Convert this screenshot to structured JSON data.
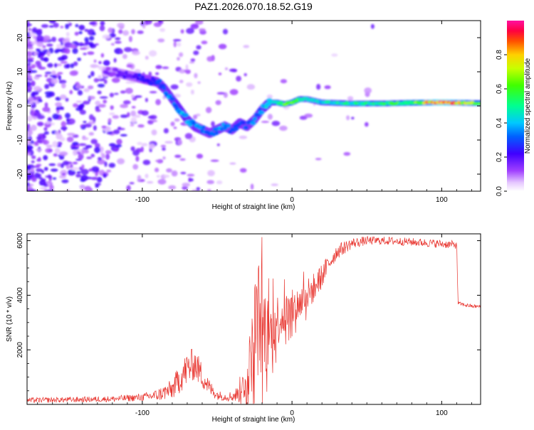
{
  "title": "PAZ1.2026.070.18.52.G19",
  "chart_data": [
    {
      "type": "heatmap",
      "name": "spectrogram",
      "xlabel": "Height of straight line (km)",
      "ylabel": "Frequency (Hz)",
      "xlim": [
        -177,
        126
      ],
      "ylim": [
        -25,
        25
      ],
      "xticks": [
        -100,
        0,
        100
      ],
      "yticks": [
        -20,
        -10,
        0,
        10,
        20
      ],
      "ridge": {
        "x": [
          -120,
          -110,
          -100,
          -90,
          -85,
          -80,
          -75,
          -70,
          -65,
          -60,
          -55,
          -50,
          -45,
          -40,
          -35,
          -30,
          -25,
          -20,
          -15,
          -10,
          -5,
          0,
          5,
          10,
          20,
          40,
          60,
          80,
          100,
          126
        ],
        "y": [
          10,
          9,
          8,
          7,
          5,
          2,
          -1,
          -4,
          -6,
          -7,
          -8,
          -7,
          -6,
          -7,
          -5,
          -6,
          -4,
          -1,
          1,
          1,
          0.5,
          1,
          2,
          2,
          1,
          0.7,
          0.7,
          0.9,
          1,
          0.8
        ],
        "amplitude": [
          0.15,
          0.2,
          0.25,
          0.3,
          0.35,
          0.35,
          0.4,
          0.4,
          0.35,
          0.35,
          0.3,
          0.35,
          0.35,
          0.3,
          0.35,
          0.3,
          0.35,
          0.35,
          0.45,
          0.5,
          0.6,
          0.65,
          0.55,
          0.45,
          0.45,
          0.5,
          0.55,
          0.6,
          0.95,
          0.6
        ]
      },
      "colorbar": {
        "label": "Normalized spectral amplitude",
        "range": [
          0.0,
          1.0
        ],
        "ticks": [
          0.0,
          0.2,
          0.4,
          0.6,
          0.8
        ],
        "tick_labels": [
          "0.0",
          "0.2",
          "0.4",
          "0.6",
          "0.8"
        ]
      }
    },
    {
      "type": "line",
      "name": "snr",
      "xlabel": "Height of straight line (km)",
      "ylabel": "SNR (10 * v/v)",
      "xlim": [
        -177,
        126
      ],
      "ylim": [
        0,
        6250
      ],
      "xticks": [
        -100,
        0,
        100
      ],
      "yticks": [
        2000,
        4000,
        6000
      ],
      "color": "#e8342e",
      "series": [
        {
          "name": "SNR",
          "x": [
            -177,
            -150,
            -120,
            -100,
            -90,
            -80,
            -75,
            -70,
            -65,
            -60,
            -55,
            -50,
            -45,
            -40,
            -35,
            -30,
            -27,
            -25,
            -22,
            -20,
            -18,
            -15,
            -12,
            -10,
            -5,
            0,
            5,
            10,
            15,
            20,
            25,
            30,
            40,
            50,
            60,
            70,
            80,
            90,
            100,
            105,
            110,
            111,
            115,
            120,
            126
          ],
          "y": [
            150,
            170,
            200,
            260,
            340,
            550,
            950,
            1300,
            1500,
            1050,
            600,
            350,
            280,
            300,
            400,
            1000,
            1800,
            2800,
            3200,
            2900,
            2700,
            2500,
            2900,
            3100,
            3300,
            3500,
            3700,
            4000,
            4300,
            4700,
            5200,
            5600,
            5900,
            6000,
            6000,
            5980,
            5950,
            5920,
            5880,
            5860,
            5850,
            3700,
            3650,
            3600,
            3580
          ],
          "amp": [
            100,
            100,
            110,
            140,
            220,
            380,
            550,
            650,
            600,
            480,
            300,
            180,
            150,
            200,
            350,
            800,
            1400,
            1900,
            2200,
            2000,
            1700,
            1200,
            1100,
            1000,
            800,
            700,
            650,
            600,
            550,
            450,
            350,
            280,
            200,
            160,
            150,
            150,
            150,
            150,
            150,
            150,
            150,
            70,
            70,
            70,
            70
          ]
        }
      ]
    }
  ]
}
